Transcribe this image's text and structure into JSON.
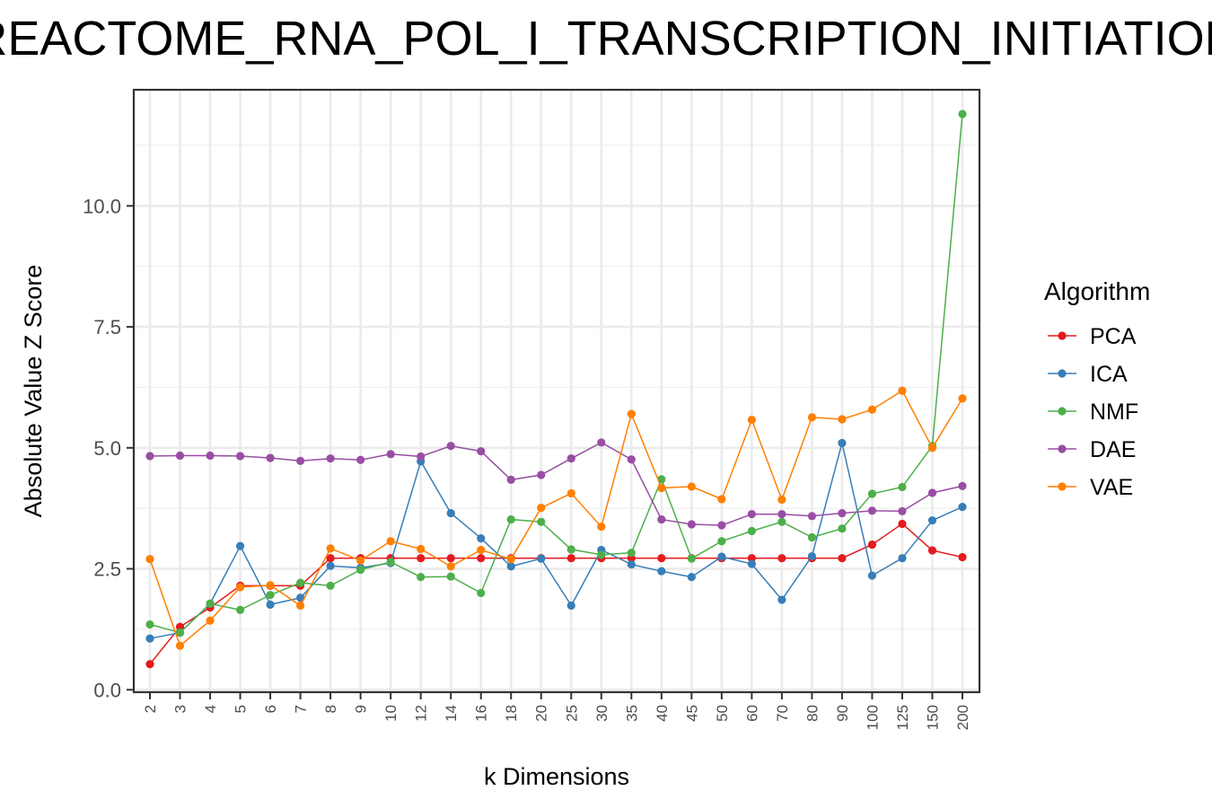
{
  "chart_data": {
    "type": "line",
    "title": "REACTOME_RNA_POL_I_TRANSCRIPTION_INITIATION",
    "xlabel": "k Dimensions",
    "ylabel": "Absolute Value Z Score",
    "categories": [
      "2",
      "3",
      "4",
      "5",
      "6",
      "7",
      "8",
      "9",
      "10",
      "12",
      "14",
      "16",
      "18",
      "20",
      "25",
      "30",
      "35",
      "40",
      "45",
      "50",
      "60",
      "70",
      "80",
      "90",
      "100",
      "125",
      "150",
      "200"
    ],
    "y_ticks": [
      "0.0",
      "2.5",
      "5.0",
      "7.5",
      "10.0"
    ],
    "ylim": [
      -0.05,
      12.4
    ],
    "grid": true,
    "legend": {
      "title": "Algorithm",
      "position": "right"
    },
    "series": [
      {
        "name": "PCA",
        "color": "#e41a1c",
        "values": [
          0.53,
          1.3,
          1.7,
          2.15,
          2.15,
          2.15,
          2.72,
          2.72,
          2.72,
          2.72,
          2.72,
          2.72,
          2.72,
          2.72,
          2.72,
          2.72,
          2.72,
          2.72,
          2.72,
          2.72,
          2.72,
          2.72,
          2.72,
          2.72,
          3.0,
          3.43,
          2.88,
          2.74
        ]
      },
      {
        "name": "ICA",
        "color": "#377eb8",
        "values": [
          1.06,
          1.18,
          1.78,
          2.97,
          1.76,
          1.9,
          2.56,
          2.52,
          2.62,
          4.72,
          3.65,
          3.13,
          2.55,
          2.71,
          1.74,
          2.89,
          2.59,
          2.45,
          2.33,
          2.75,
          2.6,
          1.86,
          2.76,
          5.1,
          2.36,
          2.72,
          3.5,
          3.78
        ]
      },
      {
        "name": "NMF",
        "color": "#4daf4a",
        "values": [
          1.35,
          1.18,
          1.78,
          1.65,
          1.96,
          2.21,
          2.15,
          2.48,
          2.64,
          2.33,
          2.34,
          2.0,
          3.52,
          3.47,
          2.9,
          2.79,
          2.83,
          4.35,
          2.71,
          3.07,
          3.28,
          3.47,
          3.15,
          3.33,
          4.05,
          4.19,
          5.04,
          11.9
        ]
      },
      {
        "name": "DAE",
        "color": "#984ea3",
        "values": [
          4.83,
          4.84,
          4.84,
          4.83,
          4.79,
          4.73,
          4.78,
          4.75,
          4.87,
          4.82,
          5.04,
          4.93,
          4.34,
          4.44,
          4.78,
          5.11,
          4.76,
          3.52,
          3.42,
          3.4,
          3.63,
          3.63,
          3.59,
          3.65,
          3.7,
          3.69,
          4.07,
          4.21
        ]
      },
      {
        "name": "VAE",
        "color": "#ff7f00",
        "values": [
          2.7,
          0.91,
          1.43,
          2.12,
          2.16,
          1.74,
          2.92,
          2.67,
          3.07,
          2.91,
          2.55,
          2.89,
          2.7,
          3.76,
          4.06,
          3.37,
          5.7,
          4.17,
          4.2,
          3.94,
          5.58,
          3.93,
          5.63,
          5.59,
          5.79,
          6.18,
          5.0,
          6.02
        ]
      }
    ]
  }
}
